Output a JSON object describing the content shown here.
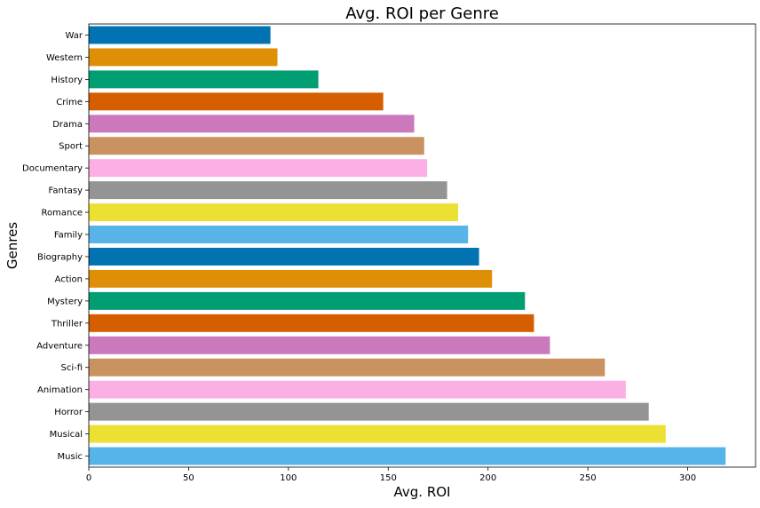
{
  "chart_data": {
    "type": "bar",
    "orientation": "horizontal",
    "title": "Avg. ROI per Genre",
    "xlabel": "Avg. ROI",
    "ylabel": "Genres",
    "xlim": [
      0,
      334
    ],
    "xticks": [
      0,
      50,
      100,
      150,
      200,
      250,
      300
    ],
    "grid": false,
    "legend": "none",
    "categories": [
      "War",
      "Western",
      "History",
      "Crime",
      "Drama",
      "Sport",
      "Documentary",
      "Fantasy",
      "Romance",
      "Family",
      "Biography",
      "Action",
      "Mystery",
      "Thriller",
      "Adventure",
      "Sci-fi",
      "Animation",
      "Horror",
      "Musical",
      "Music"
    ],
    "values": [
      91,
      94.5,
      115,
      147.5,
      163,
      168,
      169.5,
      179.5,
      185,
      190,
      195.5,
      202,
      218.5,
      223,
      231,
      258.5,
      269,
      280.5,
      289,
      319
    ],
    "colors": [
      "#0173b2",
      "#de8f05",
      "#029e73",
      "#d55e00",
      "#cc78bc",
      "#ca9161",
      "#fbafe4",
      "#949494",
      "#ece133",
      "#56b4e9",
      "#0173b2",
      "#de8f05",
      "#029e73",
      "#d55e00",
      "#cc78bc",
      "#ca9161",
      "#fbafe4",
      "#949494",
      "#ece133",
      "#56b4e9"
    ]
  }
}
